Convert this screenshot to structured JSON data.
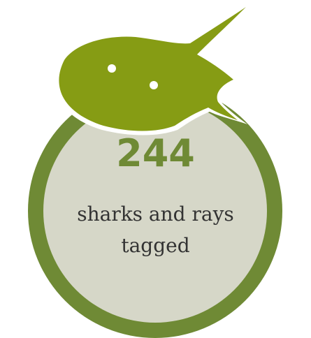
{
  "stat": {
    "number": "244",
    "label_line1": "sharks and rays",
    "label_line2": "tagged",
    "icon": "stingray-icon"
  },
  "colors": {
    "ring": "#6f8a35",
    "disc": "#d6d7c8",
    "ray": "#869c14",
    "ray_outline": "#ffffff",
    "number": "#6f8a35",
    "label": "#333333",
    "eyes": "#ffffff"
  }
}
